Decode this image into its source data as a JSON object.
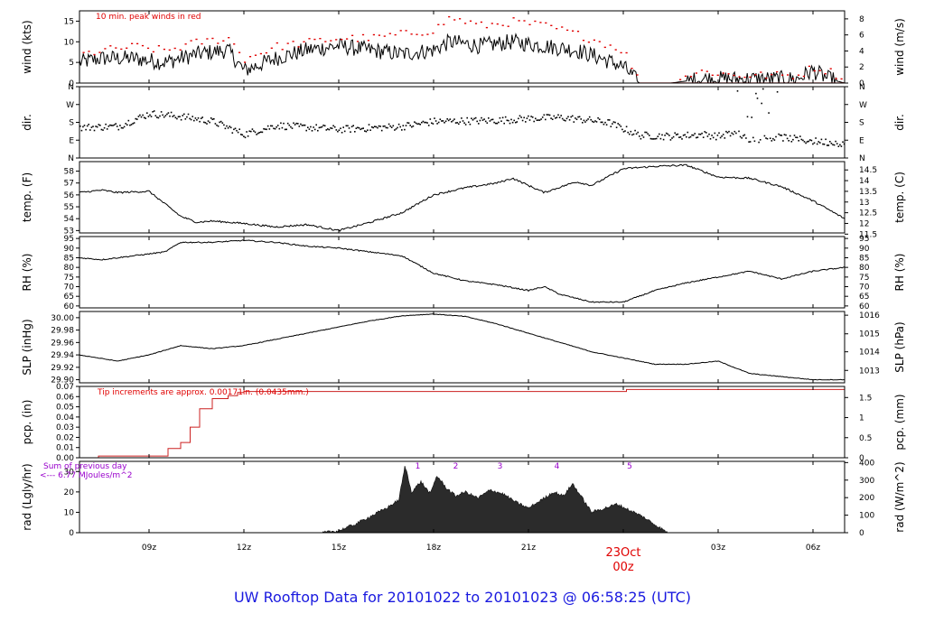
{
  "footer": {
    "title": "UW Rooftop Data for 20101022  to  20101023 @ 06:58:25  (UTC)"
  },
  "colors": {
    "axis": "#000000",
    "peak": "#e00000",
    "rain": "#cc2020",
    "solar_note": "#9900cc",
    "footer": "#1a1adf",
    "date": "#e00000",
    "fill": "#2b2b2b"
  },
  "x_axis": {
    "start_hour": 6.8,
    "end_hour": 31.0,
    "ticks": [
      {
        "hour": 9,
        "label": "09z"
      },
      {
        "hour": 12,
        "label": "12z"
      },
      {
        "hour": 15,
        "label": "15z"
      },
      {
        "hour": 18,
        "label": "18z"
      },
      {
        "hour": 21,
        "label": "21z"
      },
      {
        "hour": 24,
        "label": ""
      },
      {
        "hour": 27,
        "label": "03z"
      },
      {
        "hour": 30,
        "label": "06z"
      }
    ],
    "date_label": "23Oct",
    "date_sub": "00z"
  },
  "chart_data": [
    {
      "type": "line",
      "id": "wind",
      "ylabel_left": "wind (kts)",
      "ylabel_right": "wind (m/s)",
      "ylim": [
        0,
        17.5
      ],
      "left_ticks": [
        {
          "v": 0,
          "l": "0"
        },
        {
          "v": 5,
          "l": "5"
        },
        {
          "v": 10,
          "l": "10"
        },
        {
          "v": 15,
          "l": "15"
        }
      ],
      "right_ticks": [
        {
          "v": 0,
          "l": "0"
        },
        {
          "v": 3.889,
          "l": "2"
        },
        {
          "v": 7.777,
          "l": "4"
        },
        {
          "v": 11.666,
          "l": "6"
        },
        {
          "v": 15.554,
          "l": "8"
        }
      ],
      "annotation": "10 min. peak winds in red",
      "x": [
        6.8,
        7.5,
        8.5,
        9.5,
        10.5,
        11.5,
        12.0,
        13.0,
        14.0,
        15.0,
        16.0,
        17.0,
        18.0,
        18.5,
        19.5,
        20.5,
        21.5,
        22.5,
        23.3,
        24.0,
        24.5,
        25.5,
        26.5,
        27.5,
        28.5,
        29.5,
        30.0,
        30.5,
        31.0
      ],
      "values": [
        5,
        6,
        6,
        5,
        7,
        8,
        3,
        6,
        8,
        9,
        8,
        7,
        8,
        10,
        9,
        10,
        9,
        8,
        6,
        4,
        0,
        0,
        1,
        1,
        1,
        1,
        3,
        1,
        0
      ],
      "peaks": [
        7,
        8,
        9,
        8,
        10,
        11,
        6,
        9,
        10,
        11,
        11,
        12,
        13,
        16,
        14,
        15,
        14,
        12,
        10,
        8,
        0,
        1,
        3,
        2,
        2,
        2,
        4,
        3,
        1
      ],
      "noise": 2.0,
      "style": "spiky"
    },
    {
      "type": "scatter",
      "id": "dir",
      "ylabel_left": "dir.",
      "ylabel_right": "dir.",
      "ylim": [
        0,
        360
      ],
      "left_ticks": [
        {
          "v": 0,
          "l": "N"
        },
        {
          "v": 90,
          "l": "E"
        },
        {
          "v": 180,
          "l": "S"
        },
        {
          "v": 270,
          "l": "W"
        },
        {
          "v": 360,
          "l": "N"
        }
      ],
      "right_ticks": [
        {
          "v": 0,
          "l": "N"
        },
        {
          "v": 90,
          "l": "E"
        },
        {
          "v": 180,
          "l": "S"
        },
        {
          "v": 270,
          "l": "W"
        },
        {
          "v": 360,
          "l": "N"
        }
      ],
      "x": [
        6.8,
        8.0,
        9.0,
        10.0,
        11.0,
        12.0,
        13.0,
        15.0,
        17.0,
        18.0,
        20.0,
        21.0,
        22.0,
        23.0,
        23.5,
        24.5,
        25.5,
        26.5,
        27.0,
        27.5,
        28.0,
        29.0,
        30.0,
        31.0
      ],
      "values": [
        155,
        160,
        225,
        210,
        185,
        120,
        165,
        145,
        160,
        185,
        190,
        200,
        205,
        190,
        180,
        115,
        110,
        120,
        110,
        130,
        95,
        105,
        85,
        75
      ],
      "noise": 18
    },
    {
      "type": "line",
      "id": "temp",
      "ylabel_left": "temp. (F)",
      "ylabel_right": "temp. (C)",
      "ylim": [
        52.8,
        58.8
      ],
      "left_ticks": [
        {
          "v": 53,
          "l": "53"
        },
        {
          "v": 54,
          "l": "54"
        },
        {
          "v": 55,
          "l": "55"
        },
        {
          "v": 56,
          "l": "56"
        },
        {
          "v": 57,
          "l": "57"
        },
        {
          "v": 58,
          "l": "58"
        }
      ],
      "right_ticks": [
        {
          "v": 52.7,
          "l": "11.5"
        },
        {
          "v": 53.6,
          "l": "12"
        },
        {
          "v": 54.5,
          "l": "12.5"
        },
        {
          "v": 55.4,
          "l": "13"
        },
        {
          "v": 56.3,
          "l": "13.5"
        },
        {
          "v": 57.2,
          "l": "14"
        },
        {
          "v": 58.1,
          "l": "14.5"
        }
      ],
      "x": [
        6.8,
        7.5,
        8.0,
        9.0,
        10.0,
        10.5,
        11.0,
        12.0,
        13.0,
        14.0,
        15.0,
        16.0,
        17.0,
        18.0,
        19.0,
        20.0,
        20.5,
        21.0,
        21.5,
        22.5,
        23.0,
        24.0,
        25.0,
        26.0,
        27.0,
        28.0,
        29.0,
        30.0,
        31.0
      ],
      "values": [
        56.2,
        56.4,
        56.2,
        56.3,
        54.2,
        53.7,
        53.8,
        53.6,
        53.3,
        53.5,
        53.0,
        53.7,
        54.5,
        56.0,
        56.6,
        57.0,
        57.4,
        56.8,
        56.2,
        57.1,
        56.8,
        58.2,
        58.4,
        58.5,
        57.5,
        57.4,
        56.7,
        55.5,
        54.0
      ],
      "noise": 0.15
    },
    {
      "type": "line",
      "id": "rh",
      "ylabel_left": "RH (%)",
      "ylabel_right": "RH (%)",
      "ylim": [
        59,
        96
      ],
      "left_ticks": [
        {
          "v": 60,
          "l": "60"
        },
        {
          "v": 65,
          "l": "65"
        },
        {
          "v": 70,
          "l": "70"
        },
        {
          "v": 75,
          "l": "75"
        },
        {
          "v": 80,
          "l": "80"
        },
        {
          "v": 85,
          "l": "85"
        },
        {
          "v": 90,
          "l": "90"
        },
        {
          "v": 95,
          "l": "95"
        }
      ],
      "right_ticks": [
        {
          "v": 60,
          "l": "60"
        },
        {
          "v": 65,
          "l": "65"
        },
        {
          "v": 70,
          "l": "70"
        },
        {
          "v": 75,
          "l": "75"
        },
        {
          "v": 80,
          "l": "80"
        },
        {
          "v": 85,
          "l": "85"
        },
        {
          "v": 90,
          "l": "90"
        },
        {
          "v": 95,
          "l": "95"
        }
      ],
      "x": [
        6.8,
        7.5,
        8.5,
        9.5,
        10.0,
        11.0,
        12.0,
        13.0,
        14.0,
        15.0,
        16.0,
        17.0,
        18.0,
        19.0,
        20.0,
        21.0,
        21.5,
        22.0,
        23.0,
        24.0,
        25.0,
        26.0,
        27.0,
        28.0,
        29.0,
        30.0,
        31.0
      ],
      "values": [
        85,
        84,
        86,
        88,
        93,
        93,
        94,
        93,
        91,
        90,
        88,
        86,
        77,
        73,
        71,
        68,
        70,
        66,
        62,
        62,
        68,
        72,
        75,
        78,
        74,
        78,
        80
      ],
      "noise": 0.6
    },
    {
      "type": "line",
      "id": "slp",
      "ylabel_left": "SLP (inHg)",
      "ylabel_right": "SLP (hPa)",
      "ylim": [
        29.895,
        30.01
      ],
      "left_ticks": [
        {
          "v": 29.9,
          "l": "29.90"
        },
        {
          "v": 29.92,
          "l": "29.92"
        },
        {
          "v": 29.94,
          "l": "29.94"
        },
        {
          "v": 29.96,
          "l": "29.96"
        },
        {
          "v": 29.98,
          "l": "29.98"
        },
        {
          "v": 30.0,
          "l": "30.00"
        }
      ],
      "right_ticks": [
        {
          "v": 29.915,
          "l": "1013"
        },
        {
          "v": 29.945,
          "l": "1014"
        },
        {
          "v": 29.974,
          "l": "1015"
        },
        {
          "v": 30.004,
          "l": "1016"
        }
      ],
      "x": [
        6.8,
        8.0,
        9.0,
        10.0,
        11.0,
        12.0,
        13.0,
        14.0,
        15.0,
        16.0,
        17.0,
        18.0,
        19.0,
        20.0,
        21.0,
        22.0,
        23.0,
        24.0,
        25.0,
        26.0,
        27.0,
        28.0,
        29.0,
        30.0,
        31.0
      ],
      "values": [
        29.94,
        29.93,
        29.94,
        29.955,
        29.95,
        29.955,
        29.965,
        29.975,
        29.985,
        29.995,
        30.003,
        30.006,
        30.002,
        29.99,
        29.975,
        29.96,
        29.945,
        29.935,
        29.925,
        29.925,
        29.93,
        29.91,
        29.905,
        29.9,
        29.9
      ],
      "noise": 0.001
    },
    {
      "type": "line",
      "id": "pcp",
      "ylabel_left": "pcp. (in)",
      "ylabel_right": "pcp. (mm)",
      "ylim": [
        0,
        0.07
      ],
      "left_ticks": [
        {
          "v": 0,
          "l": "0.00"
        },
        {
          "v": 0.01,
          "l": "0.01"
        },
        {
          "v": 0.02,
          "l": "0.02"
        },
        {
          "v": 0.03,
          "l": "0.03"
        },
        {
          "v": 0.04,
          "l": "0.04"
        },
        {
          "v": 0.05,
          "l": "0.05"
        },
        {
          "v": 0.06,
          "l": "0.06"
        },
        {
          "v": 0.07,
          "l": "0.07"
        }
      ],
      "right_ticks": [
        {
          "v": 0,
          "l": "0"
        },
        {
          "v": 0.0197,
          "l": "0.5"
        },
        {
          "v": 0.0394,
          "l": "1"
        },
        {
          "v": 0.0591,
          "l": "1.5"
        }
      ],
      "annotation": "Tip increments are approx. 0.00171in. (0.0435mm.)",
      "x": [
        6.8,
        7.3,
        7.4,
        9.5,
        9.6,
        10.0,
        10.3,
        10.6,
        11.0,
        11.5,
        11.8,
        12.0,
        24.0,
        24.1,
        31.0
      ],
      "values": [
        0,
        0,
        0.0017,
        0.0017,
        0.009,
        0.015,
        0.03,
        0.048,
        0.058,
        0.061,
        0.064,
        0.065,
        0.065,
        0.067,
        0.067
      ],
      "noise": 0,
      "style": "step"
    },
    {
      "type": "area",
      "id": "rad",
      "ylabel_left": "rad (Lgly/hr)",
      "ylabel_right": "rad (W/m^2)",
      "ylim": [
        0,
        35
      ],
      "left_ticks": [
        {
          "v": 0,
          "l": "0"
        },
        {
          "v": 10,
          "l": "10"
        },
        {
          "v": 20,
          "l": "20"
        },
        {
          "v": 30,
          "l": "30"
        }
      ],
      "right_ticks": [
        {
          "v": 0,
          "l": "0"
        },
        {
          "v": 8.6,
          "l": "100"
        },
        {
          "v": 17.2,
          "l": "200"
        },
        {
          "v": 25.8,
          "l": "300"
        },
        {
          "v": 34.4,
          "l": "400"
        }
      ],
      "annotation_lines": [
        "Sum of previous day",
        "<--- 6.77 MJoules/m^2"
      ],
      "hour_marks": [
        {
          "hour": 17.5,
          "label": "1"
        },
        {
          "hour": 18.7,
          "label": "2"
        },
        {
          "hour": 20.1,
          "label": "3"
        },
        {
          "hour": 21.9,
          "label": "4"
        },
        {
          "hour": 24.2,
          "label": "5"
        }
      ],
      "x": [
        6.8,
        14.5,
        15.0,
        15.5,
        16.0,
        16.5,
        16.9,
        17.1,
        17.3,
        17.6,
        17.9,
        18.1,
        18.4,
        18.7,
        19.0,
        19.4,
        19.8,
        20.2,
        20.6,
        21.0,
        21.4,
        21.8,
        22.1,
        22.4,
        22.7,
        23.0,
        23.4,
        23.8,
        24.2,
        24.6,
        25.0,
        25.4,
        31.0
      ],
      "values": [
        0,
        0,
        1,
        4,
        8,
        12,
        16,
        33,
        20,
        25,
        19,
        28,
        22,
        18,
        20,
        17,
        21,
        19,
        15,
        12,
        16,
        20,
        18,
        24,
        17,
        10,
        12,
        14,
        11,
        8,
        4,
        0,
        0
      ],
      "noise": 1.5
    }
  ]
}
